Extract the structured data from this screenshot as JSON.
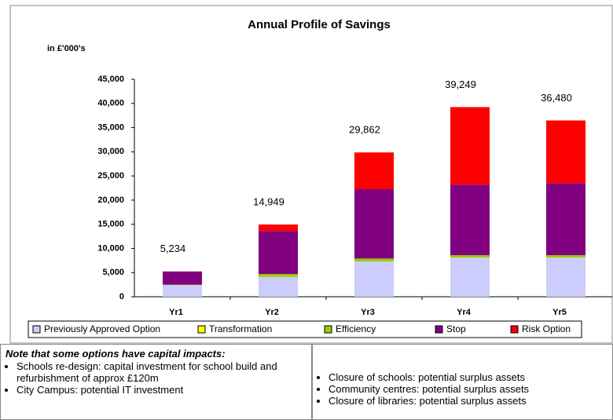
{
  "chart_data": {
    "type": "stacked_bar",
    "title": "Annual Profile of Savings",
    "y_axis_label": "in £'000's",
    "categories": [
      "Yr1",
      "Yr2",
      "Yr3",
      "Yr4",
      "Yr5"
    ],
    "series": [
      {
        "name": "Previously Approved Option",
        "color": "#ccccff",
        "values": [
          2400,
          4100,
          7300,
          8100,
          8100
        ]
      },
      {
        "name": "Transformation",
        "color": "#ffff00",
        "values": [
          0,
          0,
          0,
          0,
          0
        ]
      },
      {
        "name": "Efficiency",
        "color": "#99cc00",
        "values": [
          100,
          600,
          600,
          500,
          500
        ]
      },
      {
        "name": "Stop",
        "color": "#800080",
        "values": [
          2734,
          8900,
          14350,
          14600,
          14900
        ]
      },
      {
        "name": "Risk Option",
        "color": "#ff0000",
        "values": [
          0,
          1349,
          7612,
          16049,
          12980
        ]
      }
    ],
    "totals": [
      5234,
      14949,
      29862,
      39249,
      36480
    ],
    "total_labels": [
      "5,234",
      "14,949",
      "29,862",
      "39,249",
      "36,480"
    ],
    "ylim": [
      0,
      45000
    ],
    "yticks": [
      0,
      {
        "value": 5000,
        "label": "5,000"
      },
      {
        "value": 10000,
        "label": "10,000"
      },
      {
        "value": 15000,
        "label": "15,000"
      },
      {
        "value": 20000,
        "label": "20,000"
      },
      {
        "value": 25000,
        "label": "25,000"
      },
      {
        "value": 30000,
        "label": "30,000"
      },
      {
        "value": 35000,
        "label": "35,000"
      },
      {
        "value": 40000,
        "label": "40,000"
      },
      {
        "value": 45000,
        "label": "45,000"
      }
    ],
    "grid": false,
    "legend": "bottom"
  },
  "notes": {
    "left": {
      "heading": "Note that some options have capital impacts:",
      "items": [
        "Schools re-design: capital investment for school build and refurbishment of approx £120m",
        "City Campus: potential IT investment"
      ]
    },
    "right": {
      "items": [
        "Closure of schools: potential surplus assets",
        "Community centres: potential surplus assets",
        "Closure of libraries: potential surplus assets"
      ]
    }
  }
}
